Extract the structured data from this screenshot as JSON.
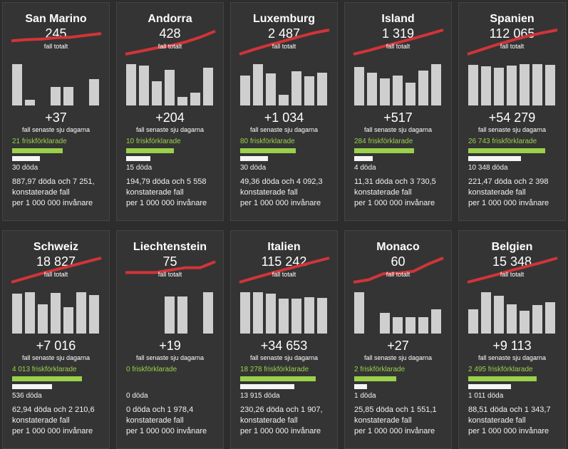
{
  "labels": {
    "total_suffix": "fall totalt",
    "weekly_suffix": "fall senaste sju dagarna",
    "line2": "konstaterade fall",
    "line3": "per 1 000 000 invånare"
  },
  "colors": {
    "background": "#2d2d2d",
    "card": "#343434",
    "trend": "#d13438",
    "recovered": "#9ad14b",
    "deaths": "#f5f5f5",
    "bars": "#cfcfcf"
  },
  "chart_data": {
    "type": "bar",
    "countries": [
      {
        "name": "San Marino",
        "total": "245",
        "weekly": "+37",
        "recovered": "21 friskförklarade",
        "deaths": "30 döda",
        "per_million": "887,97 döda och 7 251,",
        "recovered_count": 21,
        "death_count": 30,
        "daily": [
          1,
          0.14,
          0,
          0.45,
          0.45,
          0,
          0.64
        ],
        "trend": [
          0.55,
          0.6,
          0.62,
          0.68,
          0.7,
          0.78,
          0.85
        ]
      },
      {
        "name": "Andorra",
        "total": "428",
        "weekly": "+204",
        "recovered": "10 friskförklarade",
        "deaths": "15 döda",
        "per_million": "194,79 döda och 5 558",
        "recovered_count": 10,
        "death_count": 15,
        "daily": [
          1,
          0.97,
          0.59,
          0.86,
          0.2,
          0.31,
          0.92
        ],
        "trend": [
          0,
          0.12,
          0.25,
          0.35,
          0.5,
          0.7,
          0.95
        ]
      },
      {
        "name": "Luxemburg",
        "total": "2 487",
        "weekly": "+1 034",
        "recovered": "80 friskförklarade",
        "deaths": "30 döda",
        "per_million": "49,36 döda och 4 092,3",
        "recovered_count": 80,
        "death_count": 30,
        "daily": [
          0.73,
          1,
          0.78,
          0.26,
          0.82,
          0.7,
          0.8
        ],
        "trend": [
          0,
          0.2,
          0.38,
          0.55,
          0.72,
          0.88,
          1
        ]
      },
      {
        "name": "Island",
        "total": "1 319",
        "weekly": "+517",
        "recovered": "284 friskförklarade",
        "deaths": "4 döda",
        "per_million": "11,31 döda och 3 730,5",
        "recovered_count": 284,
        "death_count": 4,
        "daily": [
          0.93,
          0.8,
          0.66,
          0.73,
          0.56,
          0.85,
          1
        ],
        "trend": [
          0,
          0.15,
          0.32,
          0.48,
          0.65,
          0.82,
          1
        ]
      },
      {
        "name": "Spanien",
        "total": "112 065",
        "weekly": "+54 279",
        "recovered": "26 743 friskförklarade",
        "deaths": "10 348 döda",
        "per_million": "221,47 döda och 2 398",
        "recovered_count": 26743,
        "death_count": 10348,
        "daily": [
          0.98,
          0.95,
          0.91,
          0.96,
          1,
          1,
          0.98
        ],
        "trend": [
          0,
          0.2,
          0.4,
          0.58,
          0.74,
          0.88,
          1
        ]
      },
      {
        "name": "Schweiz",
        "total": "18 827",
        "weekly": "+7 016",
        "recovered": "4 013 friskförklarade",
        "deaths": "536 döda",
        "per_million": "62,94 döda och 2 210,6",
        "recovered_count": 4013,
        "death_count": 536,
        "daily": [
          0.96,
          1,
          0.7,
          0.98,
          0.64,
          1,
          0.93
        ],
        "trend": [
          0,
          0.18,
          0.36,
          0.52,
          0.68,
          0.84,
          1
        ]
      },
      {
        "name": "Liechtenstein",
        "total": "75",
        "weekly": "+19",
        "recovered": "0 friskförklarade",
        "deaths": "0 döda",
        "per_million": "0 döda och 1 978,4",
        "recovered_count": 0,
        "death_count": 0,
        "daily": [
          0,
          0,
          0,
          0.89,
          0.89,
          0,
          1
        ],
        "trend": [
          0.4,
          0.4,
          0.4,
          0.5,
          0.6,
          0.6,
          0.85
        ]
      },
      {
        "name": "Italien",
        "total": "115 242",
        "weekly": "+34 653",
        "recovered": "18 278 friskförklarade",
        "deaths": "13 915 döda",
        "per_million": "230,26 döda och 1 907,",
        "recovered_count": 18278,
        "death_count": 13915,
        "daily": [
          1,
          1,
          0.97,
          0.85,
          0.85,
          0.88,
          0.87
        ],
        "trend": [
          0,
          0.18,
          0.35,
          0.52,
          0.68,
          0.84,
          1
        ]
      },
      {
        "name": "Monaco",
        "total": "60",
        "weekly": "+27",
        "recovered": "2 friskförklarade",
        "deaths": "1 döda",
        "per_million": "25,85 döda och 1 551,1",
        "recovered_count": 2,
        "death_count": 1,
        "daily": [
          1,
          0,
          0.5,
          0.39,
          0.39,
          0.39,
          0.59
        ],
        "trend": [
          0,
          0.1,
          0.35,
          0.38,
          0.45,
          0.75,
          1
        ]
      },
      {
        "name": "Belgien",
        "total": "15 348",
        "weekly": "+9 113",
        "recovered": "2 495 friskförklarade",
        "deaths": "1 011 döda",
        "per_million": "88,51 döda och 1 343,7",
        "recovered_count": 2495,
        "death_count": 1011,
        "daily": [
          0.59,
          1,
          0.91,
          0.7,
          0.55,
          0.69,
          0.76
        ],
        "trend": [
          0,
          0.16,
          0.32,
          0.5,
          0.66,
          0.82,
          1
        ]
      }
    ]
  }
}
